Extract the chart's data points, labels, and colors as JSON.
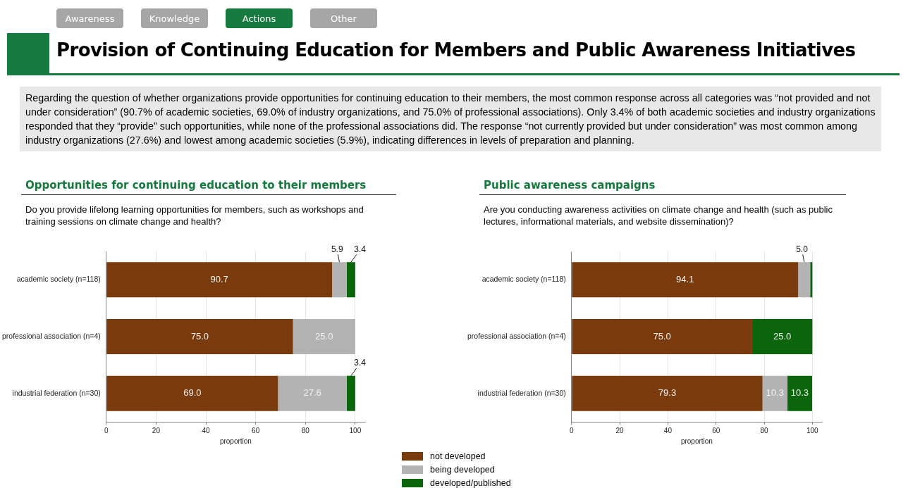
{
  "chart_data": [
    {
      "type": "other",
      "title": "Provision of Continuing Education for Members and Public Awareness Initiatives",
      "categories": [
        "Awareness",
        "Knowledge",
        "Actions",
        "Other"
      ],
      "colors": [
        "#a6a6a6",
        "#a6a6a6",
        "#157a3e",
        "#a6a6a6"
      ],
      "annotations": [
        "Regarding the question of whether organizations provide opportunities for continuing education to their members, the most common response across all categories was “not provided and not under consideration” (90.7% of academic societies, 69.0% of industry organizations, and 75.0% of professional associations). Only 3.4% of both academic societies and industry organizations responded that they “provide” such opportunities, while none of the professional associations did. The response “not currently provided but under consideration” was most common among industry organizations (27.6%) and lowest among academic societies (5.9%), indicating differences in levels of preparation and planning."
      ]
    },
    {
      "type": "bar",
      "title": "Opportunities for continuing education to their members",
      "subtitle": "Do you provide lifelong learning opportunities for members, such as workshops and training sessions on climate change and health?",
      "categories": [
        "academic society (n=118)",
        "professional association (n=4)",
        "industrial federation (n=30)"
      ],
      "orientation": "horizontal",
      "stacked": true,
      "xlim": [
        0,
        104
      ],
      "xticks": [
        0,
        20,
        40,
        60,
        80,
        100
      ],
      "xlabel": "proportion",
      "grid": "x",
      "legend": "bottom",
      "series": [
        {
          "name": "not developed",
          "color": "#7a3b0c",
          "values": [
            90.7,
            75.0,
            69.0
          ],
          "value_labels": [
            "90.7",
            "75.0",
            "69.0"
          ]
        },
        {
          "name": "being developed",
          "color": "#b3b3b3",
          "values": [
            5.9,
            25.0,
            27.6
          ],
          "value_labels": [
            "5.9",
            "25.0",
            "27.6"
          ]
        },
        {
          "name": "developed/published",
          "color": "#0b650b",
          "values": [
            3.4,
            null,
            3.4
          ],
          "value_labels": [
            "3.4",
            null,
            "3.4"
          ]
        }
      ]
    },
    {
      "type": "bar",
      "title": "Public awareness campaigns",
      "subtitle": "Are you conducting awareness activities on climate change and health (such as public lectures, informational materials, and website dissemination)?",
      "categories": [
        "academic society (n=118)",
        "professional association (n=4)",
        "industrial federation (n=30)"
      ],
      "orientation": "horizontal",
      "stacked": true,
      "xlim": [
        0,
        104
      ],
      "xticks": [
        0,
        20,
        40,
        60,
        80,
        100
      ],
      "xlabel": "proportion",
      "grid": "x",
      "series": [
        {
          "color": "#7a3b0c",
          "values": [
            94.1,
            75.0,
            79.3
          ],
          "value_labels": [
            "94.1",
            "75.0",
            "79.3"
          ]
        },
        {
          "color": "#b3b3b3",
          "values": [
            5.0,
            null,
            10.3
          ],
          "value_labels": [
            "5.0",
            null,
            "10.3"
          ]
        },
        {
          "color": "#0b650b",
          "values": [
            0.9,
            25.0,
            10.3
          ],
          "value_labels": [
            null,
            "25.0",
            "10.3"
          ]
        }
      ]
    }
  ]
}
